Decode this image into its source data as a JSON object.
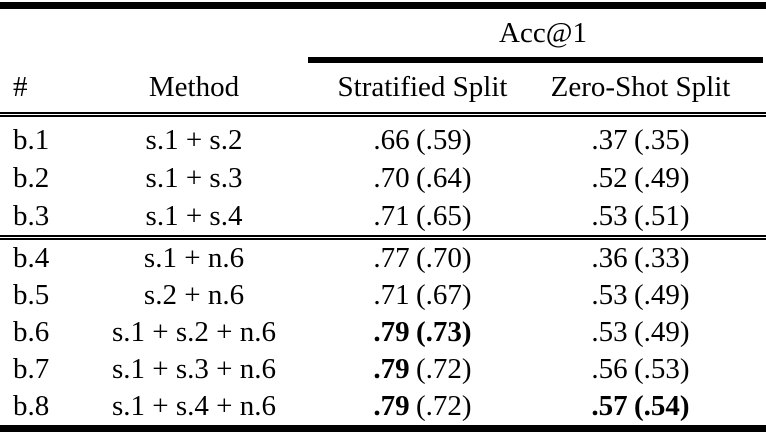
{
  "table": {
    "span_header": "Acc@1",
    "columns": {
      "num": "#",
      "method": "Method",
      "stratified": "Stratified Split",
      "zeroshot": "Zero-Shot Split"
    },
    "rows": [
      {
        "id": "b.1",
        "method": "s.1 + s.2",
        "strat_main": ".66",
        "strat_paren": "(.59)",
        "zero_main": ".37",
        "zero_paren": "(.35)"
      },
      {
        "id": "b.2",
        "method": "s.1 + s.3",
        "strat_main": ".70",
        "strat_paren": "(.64)",
        "zero_main": ".52",
        "zero_paren": "(.49)"
      },
      {
        "id": "b.3",
        "method": "s.1 + s.4",
        "strat_main": ".71",
        "strat_paren": "(.65)",
        "zero_main": ".53",
        "zero_paren": "(.51)"
      },
      {
        "id": "b.4",
        "method": "s.1 + n.6",
        "strat_main": ".77",
        "strat_paren": "(.70)",
        "zero_main": ".36",
        "zero_paren": "(.33)"
      },
      {
        "id": "b.5",
        "method": "s.2 + n.6",
        "strat_main": ".71",
        "strat_paren": "(.67)",
        "zero_main": ".53",
        "zero_paren": "(.49)"
      },
      {
        "id": "b.6",
        "method": "s.1 + s.2 + n.6",
        "strat_main": ".79",
        "strat_paren": "(.73)",
        "strat_main_bold": true,
        "strat_paren_bold": true,
        "zero_main": ".53",
        "zero_paren": "(.49)"
      },
      {
        "id": "b.7",
        "method": "s.1 + s.3 + n.6",
        "strat_main": ".79",
        "strat_paren": "(.72)",
        "strat_main_bold": true,
        "zero_main": ".56",
        "zero_paren": "(.53)"
      },
      {
        "id": "b.8",
        "method": "s.1 + s.4 + n.6",
        "strat_main": ".79",
        "strat_paren": "(.72)",
        "strat_main_bold": true,
        "zero_main": ".57",
        "zero_paren": "(.54)",
        "zero_main_bold": true,
        "zero_paren_bold": true
      }
    ],
    "text_color": "#000000",
    "rule_color": "#000000",
    "background": "#ffffff"
  }
}
